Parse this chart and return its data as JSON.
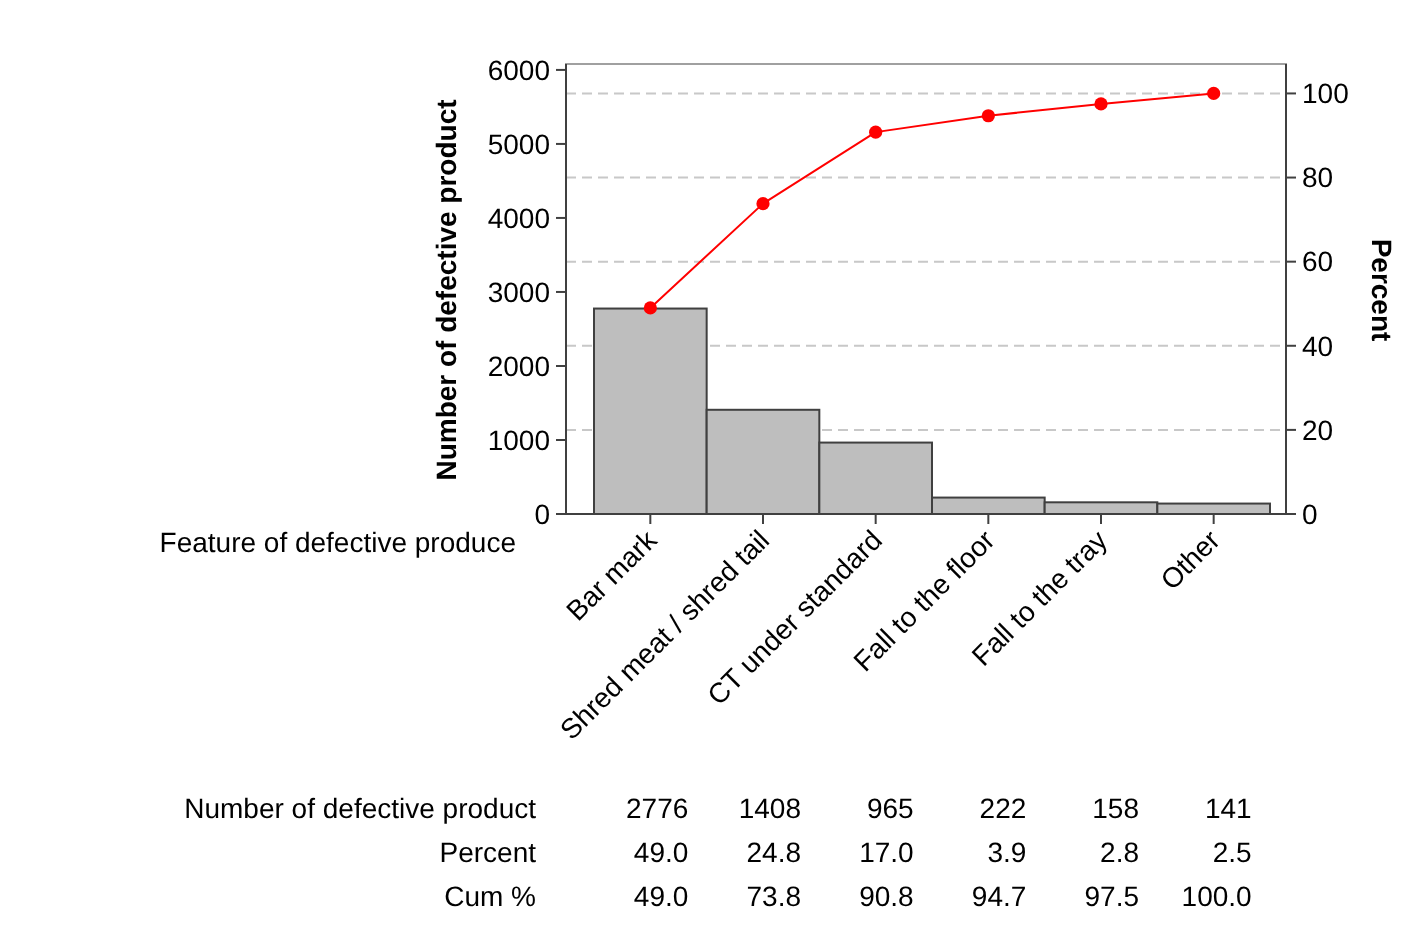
{
  "chart_data": {
    "type": "bar",
    "categories": [
      "Bar mark",
      "Shred meat / shred tail",
      "CT under standard",
      "Fall to the floor",
      "Fall to the tray",
      "Other"
    ],
    "xlabel": "Feature of defective produce",
    "ylabel": "Number of defective product",
    "y2label": "Percent",
    "series": [
      {
        "color": "#bebebe",
        "values": [
          2776,
          1408,
          965,
          222,
          158,
          141
        ],
        "value_labels": [
          "2776",
          "1408",
          "965",
          "222",
          "158",
          "141"
        ]
      },
      {
        "type": "line",
        "axis": "y2",
        "color": "#ff0000",
        "marker": "circle",
        "values": [
          49.0,
          73.8,
          90.8,
          94.7,
          97.5,
          100.0
        ],
        "value_labels": [
          "49.0",
          "73.8",
          "90.8",
          "94.7",
          "97.5",
          "100.0"
        ]
      }
    ],
    "annotations": [
      "Number of defective product",
      "Percent",
      "Cum %",
      "49.0",
      "24.8",
      "17.0",
      "3.9",
      "2.8",
      "2.5"
    ],
    "ylim": [
      0,
      6080
    ],
    "yticks": [
      0,
      1000,
      2000,
      3000,
      4000,
      5000,
      6000
    ],
    "y2lim": [
      0,
      107
    ],
    "y2ticks": [
      0,
      20,
      40,
      60,
      80,
      100
    ],
    "grid": "y"
  }
}
